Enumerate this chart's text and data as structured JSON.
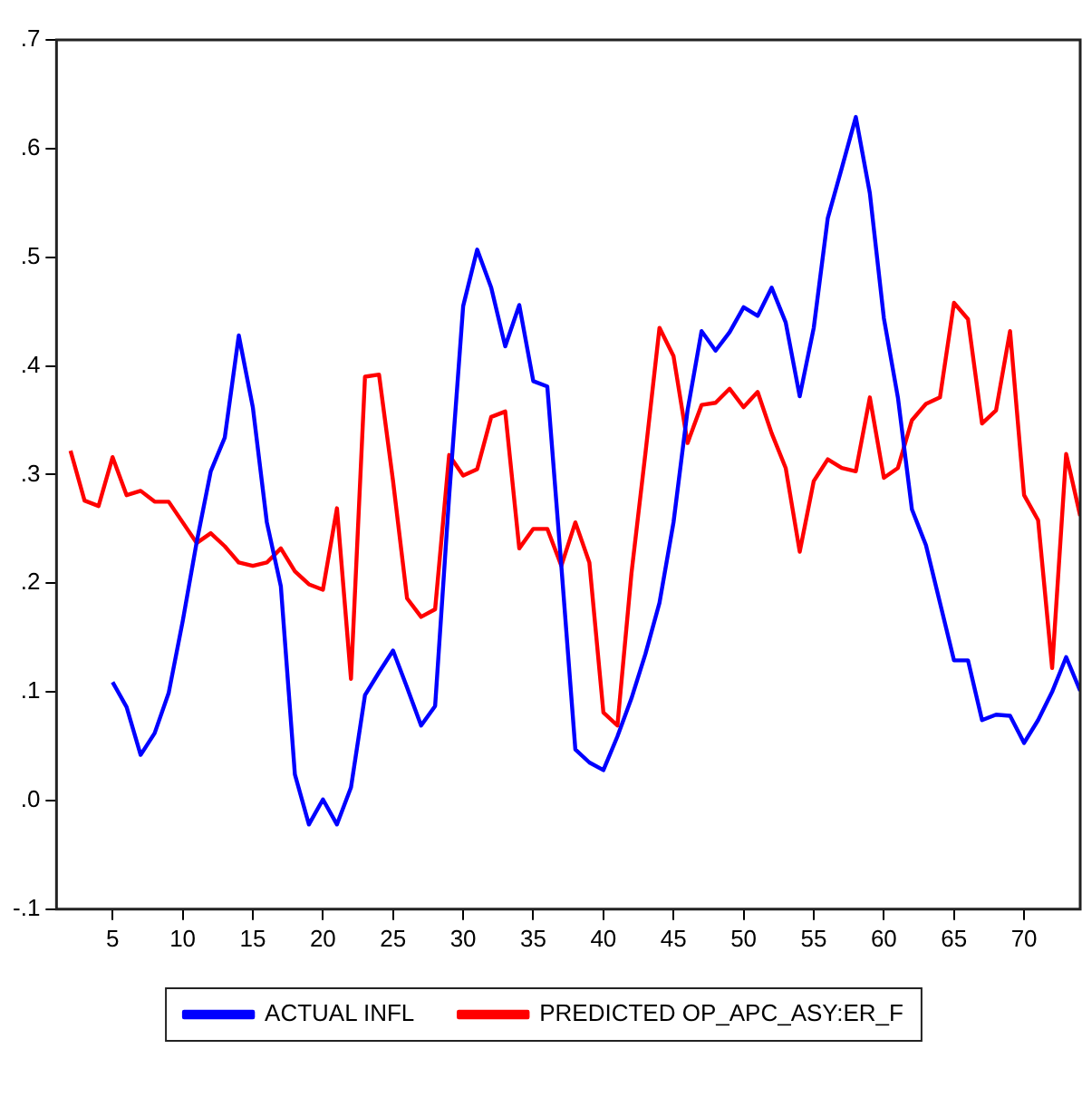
{
  "chart_data": {
    "type": "line",
    "series": [
      {
        "name": "ACTUAL INFL",
        "color": "#0000ff",
        "x": [
          5,
          6,
          7,
          8,
          9,
          10,
          11,
          12,
          13,
          14,
          15,
          16,
          17,
          18,
          19,
          20,
          21,
          22,
          23,
          24,
          25,
          26,
          27,
          28,
          29,
          30,
          31,
          32,
          33,
          34,
          35,
          36,
          37,
          38,
          39,
          40,
          41,
          42,
          43,
          44,
          45,
          46,
          47,
          48,
          49,
          50,
          51,
          52,
          53,
          54,
          55,
          56,
          57,
          58,
          59,
          60,
          61,
          62,
          63,
          64,
          65,
          66,
          67,
          68,
          69,
          70,
          71,
          72,
          73,
          74
        ],
        "values": [
          0.109,
          0.086,
          0.042,
          0.062,
          0.099,
          0.165,
          0.238,
          0.303,
          0.334,
          0.428,
          0.362,
          0.256,
          0.197,
          0.024,
          -0.022,
          0.001,
          -0.022,
          0.012,
          0.097,
          0.118,
          0.138,
          0.104,
          0.069,
          0.087,
          0.28,
          0.455,
          0.507,
          0.472,
          0.418,
          0.456,
          0.386,
          0.381,
          0.216,
          0.047,
          0.035,
          0.028,
          0.059,
          0.094,
          0.135,
          0.182,
          0.256,
          0.359,
          0.432,
          0.414,
          0.431,
          0.454,
          0.446,
          0.472,
          0.44,
          0.372,
          0.435,
          0.536,
          0.582,
          0.629,
          0.559,
          0.444,
          0.371,
          0.268,
          0.235,
          0.182,
          0.129,
          0.129,
          0.074,
          0.079,
          0.078,
          0.053,
          0.074,
          0.1,
          0.132,
          0.101
        ]
      },
      {
        "name": "PREDICTED OP_APC_ASY:ER_F",
        "color": "#ff0000",
        "x": [
          2,
          3,
          4,
          5,
          6,
          7,
          8,
          9,
          10,
          11,
          12,
          13,
          14,
          15,
          16,
          17,
          18,
          19,
          20,
          21,
          22,
          23,
          24,
          25,
          26,
          27,
          28,
          29,
          30,
          31,
          32,
          33,
          34,
          35,
          36,
          37,
          38,
          39,
          40,
          41,
          42,
          43,
          44,
          45,
          46,
          47,
          48,
          49,
          50,
          51,
          52,
          53,
          54,
          55,
          56,
          57,
          58,
          59,
          60,
          61,
          62,
          63,
          64,
          65,
          66,
          67,
          68,
          69,
          70,
          71,
          72,
          73,
          74
        ],
        "values": [
          0.322,
          0.276,
          0.271,
          0.316,
          0.281,
          0.285,
          0.275,
          0.275,
          0.256,
          0.237,
          0.246,
          0.234,
          0.219,
          0.216,
          0.219,
          0.232,
          0.211,
          0.199,
          0.194,
          0.269,
          0.112,
          0.39,
          0.392,
          0.294,
          0.186,
          0.169,
          0.176,
          0.318,
          0.299,
          0.305,
          0.353,
          0.358,
          0.232,
          0.25,
          0.25,
          0.216,
          0.256,
          0.219,
          0.081,
          0.069,
          0.209,
          0.32,
          0.435,
          0.409,
          0.329,
          0.364,
          0.366,
          0.379,
          0.362,
          0.376,
          0.338,
          0.306,
          0.229,
          0.294,
          0.314,
          0.306,
          0.303,
          0.371,
          0.297,
          0.306,
          0.35,
          0.365,
          0.371,
          0.458,
          0.443,
          0.347,
          0.359,
          0.432,
          0.281,
          0.258,
          0.122,
          0.319,
          0.262
        ]
      }
    ],
    "xlim": [
      1,
      74
    ],
    "xticks": [
      5,
      10,
      15,
      20,
      25,
      30,
      35,
      40,
      45,
      50,
      55,
      60,
      65,
      70
    ],
    "ylim": [
      -0.1,
      0.7
    ],
    "yticks": [
      {
        "value": -0.1,
        "label": "-.1"
      },
      {
        "value": 0,
        "label": ".0"
      },
      {
        "value": 0.1,
        "label": ".1"
      },
      {
        "value": 0.2,
        "label": ".2"
      },
      {
        "value": 0.3,
        "label": ".3"
      },
      {
        "value": 0.4,
        "label": ".4"
      },
      {
        "value": 0.5,
        "label": ".5"
      },
      {
        "value": 0.6,
        "label": ".6"
      },
      {
        "value": 0.7,
        "label": ".7"
      }
    ],
    "grid": false,
    "legend": "bottom",
    "marker": "none",
    "line_style": "solid"
  }
}
